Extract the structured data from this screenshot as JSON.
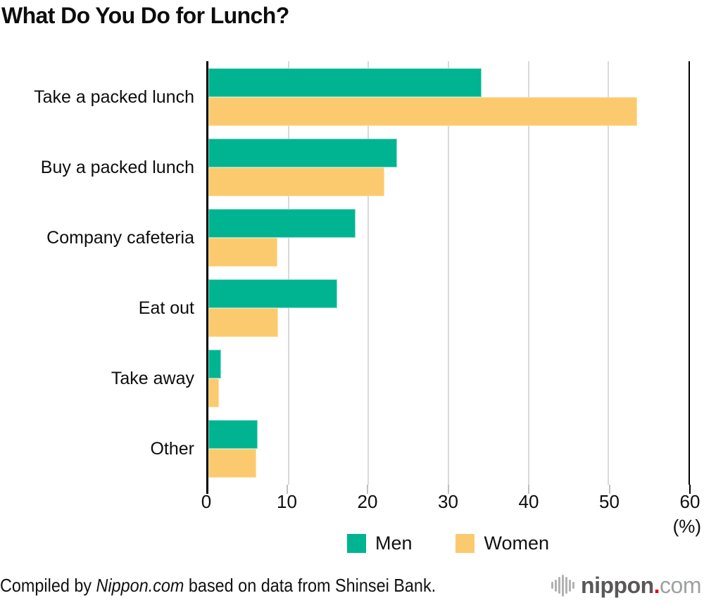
{
  "title": "What Do You Do for Lunch?",
  "chart_data": {
    "type": "bar",
    "orientation": "horizontal",
    "title": "What Do You Do for Lunch?",
    "categories": [
      "Take a packed lunch",
      "Buy a packed lunch",
      "Company cafeteria",
      "Eat out",
      "Take away",
      "Other"
    ],
    "series": [
      {
        "name": "Men",
        "color": "#00b491",
        "edge_color": "#7fdcc8",
        "values": [
          34.1,
          23.6,
          18.4,
          16.1,
          1.6,
          6.2
        ]
      },
      {
        "name": "Women",
        "color": "#fcca6e",
        "edge_color": "#fde0a4",
        "values": [
          53.6,
          22.0,
          8.6,
          8.7,
          1.3,
          6.0
        ]
      }
    ],
    "xlim": [
      0,
      60
    ],
    "x_ticks": [
      0,
      10,
      20,
      30,
      40,
      50,
      60
    ],
    "x_unit_label": "(%)",
    "grid": true,
    "gridline_color": "#d9d9d9",
    "legend_position": "bottom"
  },
  "axis": {
    "unit_label": "(%)"
  },
  "legend": {
    "items": [
      "Men",
      "Women"
    ]
  },
  "footer": {
    "credit_prefix": "Compiled by ",
    "credit_source": "Nippon.com",
    "credit_suffix": " based on data from Shinsei Bank.",
    "logo": {
      "name": "nippon",
      "dot": ".",
      "tld": "com"
    }
  }
}
